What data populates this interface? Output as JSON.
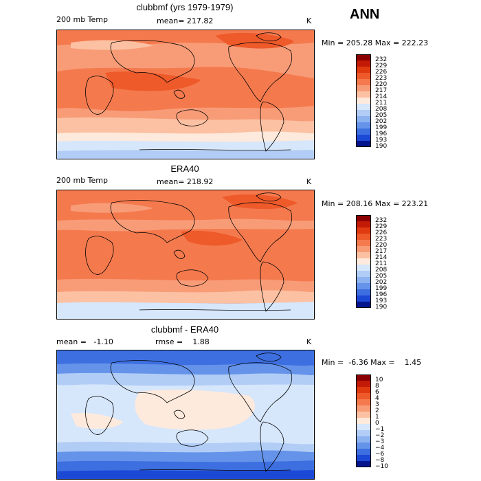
{
  "season": "ANN",
  "panels": [
    {
      "title": "clubbmf (yrs 1979-1979)",
      "left_label": "200 mb Temp",
      "center_label": "mean= 217.82",
      "units": "K",
      "minmax": "Min = 205.28 Max = 222.23",
      "levels": [
        "232",
        "229",
        "226",
        "223",
        "220",
        "217",
        "214",
        "211",
        "208",
        "205",
        "202",
        "199",
        "196",
        "193",
        "190"
      ],
      "colors": [
        "#8b0000",
        "#c21a06",
        "#e03a10",
        "#ee5a2a",
        "#f47a4e",
        "#f89c78",
        "#fcc1a2",
        "#feeadc",
        "#d6e6fb",
        "#b1cdf6",
        "#8cb2f0",
        "#6593ea",
        "#3d6fe0",
        "#1c48d6",
        "#04148c"
      ]
    },
    {
      "title": "ERA40",
      "left_label": "200 mb Temp",
      "center_label": "mean= 218.92",
      "units": "K",
      "minmax": "Min = 208.16 Max = 223.21",
      "levels": [
        "232",
        "229",
        "226",
        "223",
        "220",
        "217",
        "214",
        "211",
        "208",
        "205",
        "202",
        "199",
        "196",
        "193",
        "190"
      ],
      "colors": [
        "#8b0000",
        "#c21a06",
        "#e03a10",
        "#ee5a2a",
        "#f47a4e",
        "#f89c78",
        "#fcc1a2",
        "#feeadc",
        "#d6e6fb",
        "#b1cdf6",
        "#8cb2f0",
        "#6593ea",
        "#3d6fe0",
        "#1c48d6",
        "#04148c"
      ]
    },
    {
      "title": "clubbmf - ERA40",
      "left_label": "mean =   -1.10",
      "center_label": "rmse =    1.88",
      "units": "K",
      "minmax": "Min =  -6.36 Max =    1.45",
      "levels": [
        "10",
        "8",
        "6",
        "4",
        "3",
        "2",
        "1",
        "0",
        "−1",
        "−2",
        "−3",
        "−4",
        "−6",
        "−8",
        "−10"
      ],
      "colors": [
        "#8b0000",
        "#c21a06",
        "#e03a10",
        "#ee5a2a",
        "#f47a4e",
        "#f89c78",
        "#fcc1a2",
        "#feeadc",
        "#d6e6fb",
        "#b1cdf6",
        "#8cb2f0",
        "#6593ea",
        "#3d6fe0",
        "#1c48d6",
        "#04148c"
      ]
    }
  ]
}
